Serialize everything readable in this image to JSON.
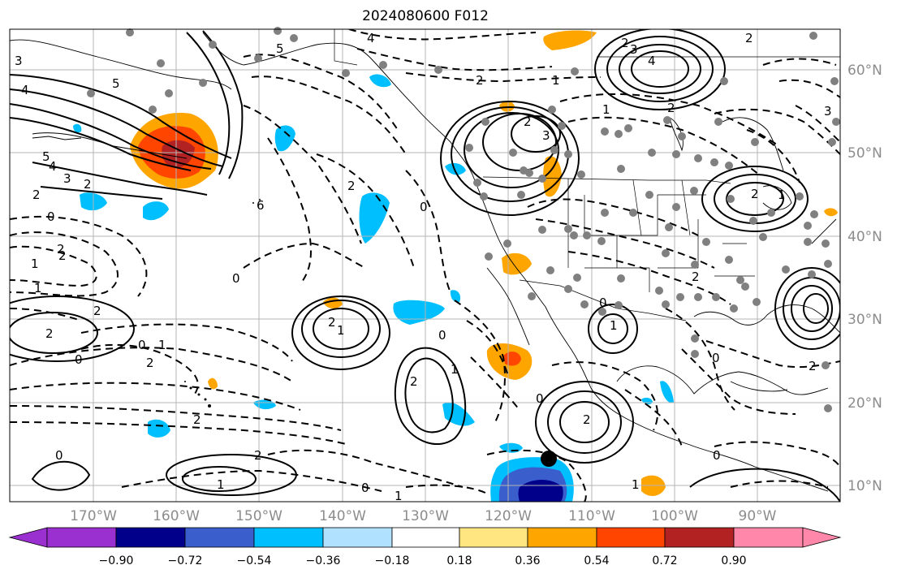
{
  "title": "2024080600 F012",
  "lat_labels": [
    "60°N",
    "50°N",
    "40°N",
    "30°N",
    "20°N",
    "10°N"
  ],
  "lon_labels": [
    "170°W",
    "160°W",
    "150°W",
    "140°W",
    "130°W",
    "120°W",
    "110°W",
    "100°W",
    "90°W"
  ],
  "colorbar": {
    "ticks": [
      "−0.90",
      "−0.72",
      "−0.54",
      "−0.36",
      "−0.18",
      "0.18",
      "0.36",
      "0.54",
      "0.72",
      "0.90"
    ],
    "colors": [
      "#9b30d0",
      "#00008b",
      "#3a5fcd",
      "#00bfff",
      "#b0e2ff",
      "#ffffff",
      "#ffe680",
      "#ffa500",
      "#ff4500",
      "#b22222",
      "#ff88aa"
    ]
  },
  "contour_labels": [
    "3",
    "4",
    "5",
    "4",
    "5",
    "3",
    "2",
    "2",
    "0",
    "2",
    "1",
    "2",
    "1",
    "0",
    "2",
    "2",
    "0",
    "1",
    "2",
    "2",
    "0",
    "1",
    "2",
    "0",
    "1",
    "2",
    "1",
    "2",
    "1",
    "0",
    "0",
    "0",
    "0",
    "2",
    "4",
    "3",
    "2",
    "2",
    "3",
    "2",
    "1",
    "0",
    "1",
    "2",
    "1",
    "2",
    "3",
    "4",
    "5",
    "6",
    "1",
    "2",
    "0",
    "0",
    "2",
    "2",
    "1",
    "2"
  ]
}
